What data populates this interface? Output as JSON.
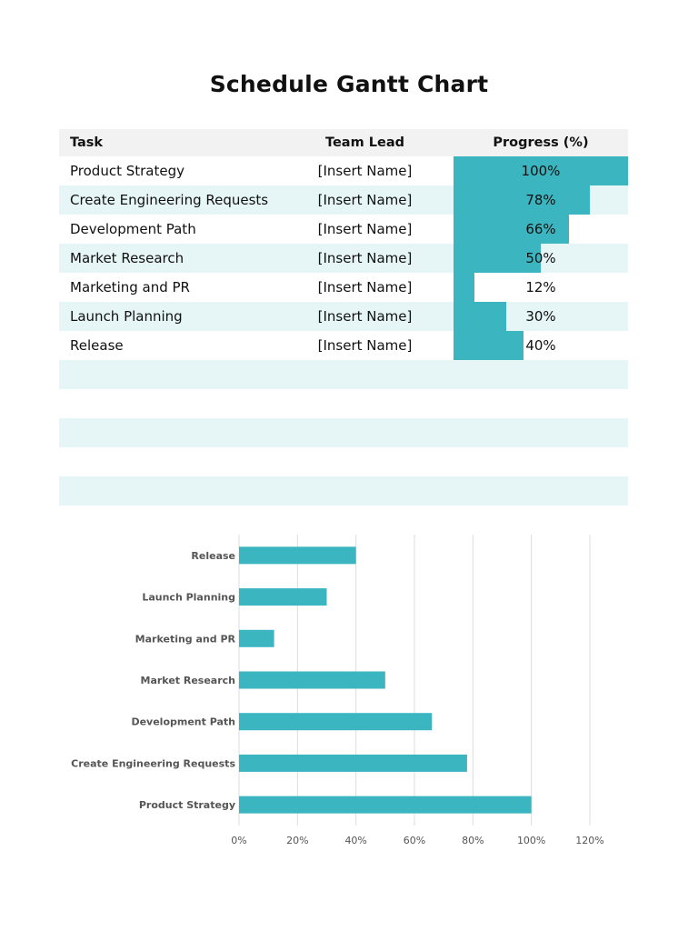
{
  "title": "Schedule Gantt Chart",
  "accent_color": "#3bb6c0",
  "table": {
    "headers": {
      "task": "Task",
      "lead": "Team Lead",
      "progress": "Progress (%)"
    },
    "rows": [
      {
        "task": "Product Strategy",
        "lead": "[Insert Name]",
        "progress": 100,
        "progress_label": "100%"
      },
      {
        "task": "Create Engineering Requests",
        "lead": "[Insert Name]",
        "progress": 78,
        "progress_label": "78%"
      },
      {
        "task": "Development Path",
        "lead": "[Insert Name]",
        "progress": 66,
        "progress_label": "66%"
      },
      {
        "task": "Market Research",
        "lead": "[Insert Name]",
        "progress": 50,
        "progress_label": "50%"
      },
      {
        "task": "Marketing and PR",
        "lead": "[Insert Name]",
        "progress": 12,
        "progress_label": "12%"
      },
      {
        "task": "Launch Planning",
        "lead": "[Insert Name]",
        "progress": 30,
        "progress_label": "30%"
      },
      {
        "task": "Release",
        "lead": "[Insert Name]",
        "progress": 40,
        "progress_label": "40%"
      }
    ],
    "empty_rows": 5
  },
  "chart_data": {
    "type": "bar",
    "orientation": "horizontal",
    "categories": [
      "Product Strategy",
      "Create Engineering Requests",
      "Development Path",
      "Market Research",
      "Marketing and PR",
      "Launch Planning",
      "Release"
    ],
    "values": [
      100,
      78,
      66,
      50,
      12,
      30,
      40
    ],
    "xlim": [
      0,
      120
    ],
    "xticks": [
      0,
      20,
      40,
      60,
      80,
      100,
      120
    ],
    "xtick_labels": [
      "0%",
      "20%",
      "40%",
      "60%",
      "80%",
      "100%",
      "120%"
    ],
    "grid": "vertical",
    "legend": "none",
    "title": "",
    "xlabel": "",
    "ylabel": ""
  }
}
